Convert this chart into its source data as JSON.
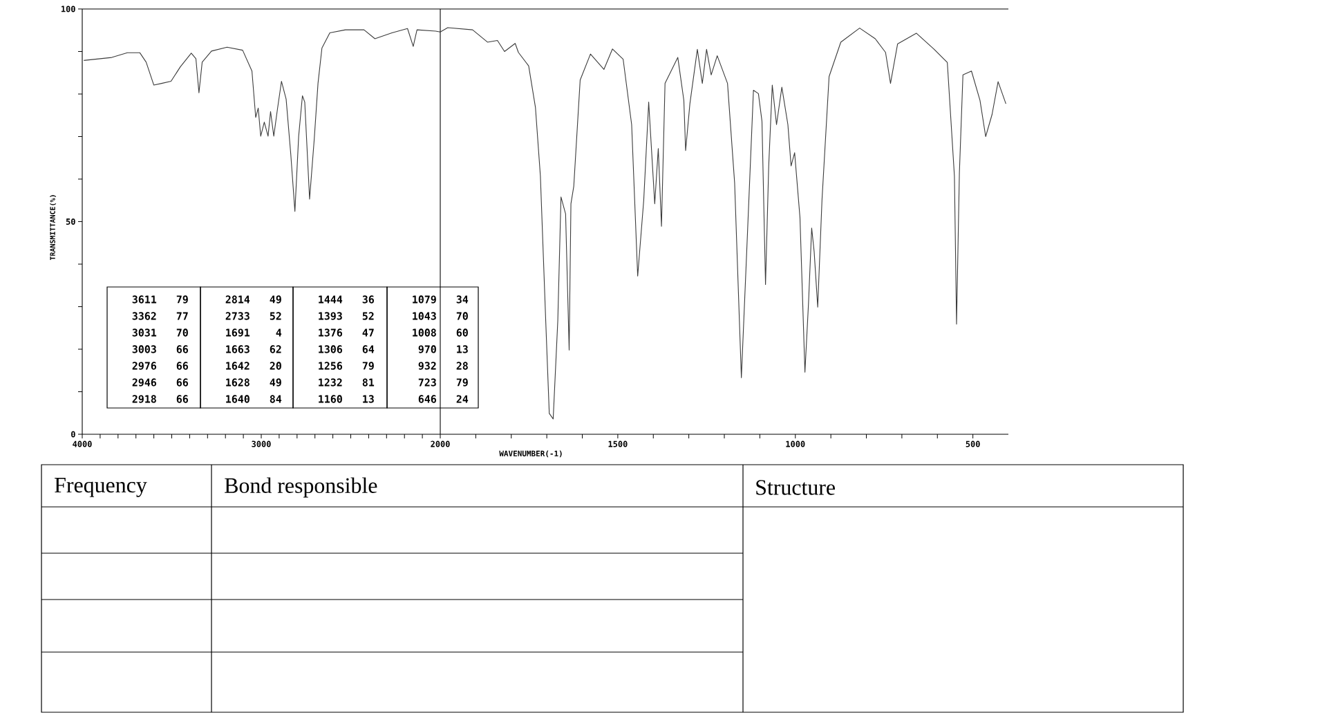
{
  "chart_data": [
    {
      "type": "line",
      "color": "#3a3a3a",
      "xlabel": null,
      "ylabel": "TRANSMITTANCE(%)",
      "xlim": [
        4000,
        2000
      ],
      "ylim": [
        0,
        100
      ],
      "xticks": [
        4000,
        {
          "value": 3900,
          "label": null
        },
        {
          "value": 3800,
          "label": null
        },
        {
          "value": 3700,
          "label": null
        },
        {
          "value": 3600,
          "label": null
        },
        {
          "value": 3500,
          "label": null
        },
        {
          "value": 3400,
          "label": null
        },
        {
          "value": 3300,
          "label": null
        },
        {
          "value": 3200,
          "label": null
        },
        {
          "value": 3100,
          "label": null
        },
        3000,
        {
          "value": 2900,
          "label": null
        },
        {
          "value": 2800,
          "label": null
        },
        {
          "value": 2700,
          "label": null
        },
        {
          "value": 2600,
          "label": null
        },
        {
          "value": 2500,
          "label": null
        },
        {
          "value": 2400,
          "label": null
        },
        {
          "value": 2300,
          "label": null
        },
        {
          "value": 2200,
          "label": null
        },
        {
          "value": 2100,
          "label": null
        },
        2000
      ],
      "yticks": [
        0,
        {
          "value": 10,
          "label": null
        },
        {
          "value": 20,
          "label": null
        },
        {
          "value": 30,
          "label": null
        },
        {
          "value": 40,
          "label": null
        },
        50,
        {
          "value": 60,
          "label": null
        },
        {
          "value": 70,
          "label": null
        },
        {
          "value": 80,
          "label": null
        },
        {
          "value": 90,
          "label": null
        },
        100
      ],
      "x": [
        3991,
        3835,
        3748,
        3678,
        3643,
        3600,
        3557,
        3504,
        3452,
        3391,
        3365,
        3348,
        3330,
        3278,
        3191,
        3104,
        3052,
        3031,
        3017,
        3003,
        2983,
        2962,
        2948,
        2930,
        2910,
        2887,
        2861,
        2835,
        2812,
        2791,
        2770,
        2757,
        2730,
        2704,
        2683,
        2661,
        2617,
        2530,
        2426,
        2365,
        2270,
        2183,
        2151,
        2130,
        2026,
        2000
      ],
      "values": [
        87.9,
        88.6,
        89.7,
        89.7,
        87.5,
        82.1,
        82.5,
        83.0,
        86.4,
        89.6,
        88.3,
        80.3,
        87.5,
        90.1,
        91.0,
        90.3,
        85.4,
        74.5,
        76.7,
        70.1,
        73.4,
        70.1,
        75.9,
        70.1,
        76.3,
        83.0,
        78.8,
        65.8,
        52.4,
        70.1,
        79.6,
        78.1,
        55.3,
        69.4,
        82.5,
        90.8,
        94.4,
        95.1,
        95.1,
        93.0,
        94.4,
        95.4,
        91.2,
        95.1,
        94.8,
        94.6
      ],
      "annotations": [
        "3611",
        "79",
        "3362",
        "77",
        "3031",
        "70",
        "3003",
        "66",
        "2976",
        "66",
        "2946",
        "66",
        "2918",
        "66",
        "2814",
        "49",
        "2733",
        "52",
        "1691",
        "4",
        "1663",
        "62",
        "1642",
        "20",
        "1628",
        "49",
        "1640",
        "84",
        "1444",
        "36",
        "1393",
        "52",
        "1376",
        "47",
        "1306",
        "64",
        "1256",
        "79",
        "1232",
        "81",
        "1160",
        "13",
        "1079",
        "34",
        "1043",
        "70",
        "1008",
        "60",
        "970",
        "13",
        "932",
        "28",
        "723",
        "79",
        "646",
        "24"
      ]
    },
    {
      "type": "line",
      "color": "#3a3a3a",
      "xlabel": "WAVENUMBER(-1)",
      "tick_labels": "x",
      "xlim": [
        2000,
        400
      ],
      "ylim": [
        0,
        100
      ],
      "xticks": [
        {
          "value": 1900,
          "label": null
        },
        {
          "value": 1800,
          "label": null
        },
        {
          "value": 1700,
          "label": null
        },
        {
          "value": 1600,
          "label": null
        },
        1500,
        {
          "value": 1400,
          "label": null
        },
        {
          "value": 1300,
          "label": null
        },
        {
          "value": 1200,
          "label": null
        },
        {
          "value": 1100,
          "label": null
        },
        1000,
        {
          "value": 900,
          "label": null
        },
        {
          "value": 800,
          "label": null
        },
        {
          "value": 700,
          "label": null
        },
        {
          "value": 600,
          "label": null
        },
        500
      ],
      "x": [
        2000,
        1979,
        1909,
        1867,
        1839,
        1819,
        1789,
        1780,
        1751,
        1732,
        1718,
        1703,
        1693,
        1682,
        1669,
        1660,
        1647,
        1637,
        1632,
        1624,
        1606,
        1577,
        1539,
        1515,
        1485,
        1461,
        1444,
        1427,
        1413,
        1396,
        1386,
        1377,
        1367,
        1331,
        1314,
        1309,
        1297,
        1276,
        1262,
        1250,
        1237,
        1220,
        1191,
        1171,
        1152,
        1137,
        1118,
        1104,
        1094,
        1084,
        1075,
        1065,
        1053,
        1038,
        1021,
        1012,
        1002,
        987,
        973,
        963,
        954,
        947,
        937,
        925,
        905,
        872,
        819,
        775,
        746,
        732,
        712,
        659,
        610,
        572,
        552,
        546,
        538,
        528,
        504,
        480,
        464,
        446,
        429,
        407
      ],
      "values": [
        94.6,
        95.6,
        95.1,
        92.2,
        92.6,
        90.0,
        91.9,
        89.8,
        86.6,
        76.9,
        60.7,
        26.7,
        4.9,
        3.6,
        26.7,
        55.8,
        51.8,
        19.8,
        54.2,
        58.3,
        83.3,
        89.4,
        85.8,
        90.6,
        88.2,
        72.8,
        37.2,
        55.0,
        78.1,
        54.2,
        67.2,
        48.9,
        82.5,
        88.6,
        78.5,
        66.7,
        77.7,
        90.5,
        82.5,
        90.5,
        84.5,
        89.0,
        82.5,
        59.1,
        13.3,
        42.9,
        80.9,
        80.1,
        73.6,
        35.2,
        63.1,
        82.1,
        72.8,
        81.6,
        72.8,
        63.1,
        66.2,
        51.0,
        14.6,
        30.7,
        48.5,
        42.9,
        29.9,
        55.0,
        84.1,
        92.2,
        95.5,
        93.0,
        89.8,
        82.5,
        91.8,
        94.3,
        90.6,
        87.4,
        60.7,
        25.9,
        61.5,
        84.5,
        85.4,
        78.5,
        70.0,
        75.2,
        82.9,
        77.7
      ]
    },
    {
      "type": "other",
      "annotations": [
        "Frequency",
        "Bond responsible",
        "Structure"
      ]
    }
  ]
}
